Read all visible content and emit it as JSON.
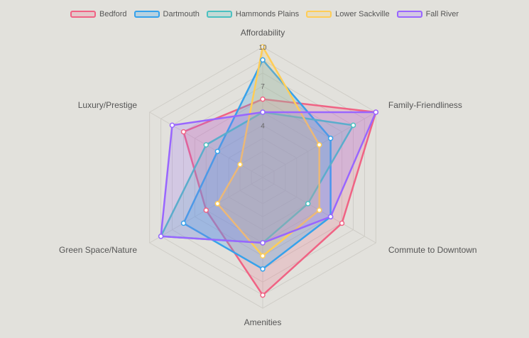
{
  "chart_data": {
    "type": "radar",
    "axes": [
      "Affordability",
      "Family-Friendliness",
      "Commute to Downtown",
      "Amenities",
      "Green Space/Nature",
      "Luxury/Prestige"
    ],
    "range": [
      0,
      10
    ],
    "tick_labels": [
      "4",
      "7",
      "10"
    ],
    "tick_values": [
      4,
      7,
      10
    ],
    "grid_levels": [
      1,
      2,
      3,
      4,
      5,
      6,
      7,
      8,
      9,
      10
    ],
    "legend_position": "top",
    "series": [
      {
        "name": "Bedford",
        "color": "#f06384",
        "fill": "rgba(240,99,132,0.2)",
        "values": [
          6,
          10,
          7,
          9,
          5,
          7
        ]
      },
      {
        "name": "Dartmouth",
        "color": "#36a2eb",
        "fill": "rgba(54,162,235,0.25)",
        "values": [
          9,
          6,
          6,
          7,
          7,
          4
        ]
      },
      {
        "name": "Hammonds Plains",
        "color": "#4bc0c0",
        "fill": "rgba(75,192,192,0.2)",
        "values": [
          5,
          8,
          4,
          5,
          9,
          5
        ]
      },
      {
        "name": "Lower Sackville",
        "color": "#ffcd56",
        "fill": "rgba(255,205,86,0.2)",
        "values": [
          10,
          5,
          5,
          6,
          4,
          2
        ]
      },
      {
        "name": "Fall River",
        "color": "#9966ff",
        "fill": "rgba(153,102,255,0.2)",
        "values": [
          5,
          10,
          6,
          5,
          9,
          8
        ]
      }
    ]
  }
}
